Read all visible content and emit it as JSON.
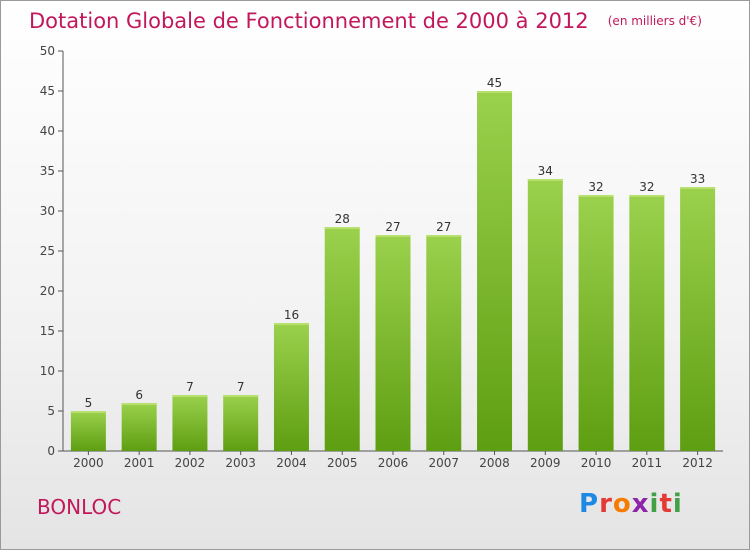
{
  "header": {
    "title": "Dotation Globale de Fonctionnement de 2000 à 2012",
    "subtitle": "(en milliers d'€)"
  },
  "footer": {
    "commune": "BONLOC",
    "logo_text": "Proxiti"
  },
  "colors": {
    "title": "#c2185b",
    "bar_top": "#9bd14d",
    "bar_bottom": "#5e9e12",
    "axis": "#555555",
    "grid": "#dddddd"
  },
  "chart_data": {
    "type": "bar",
    "title": "Dotation Globale de Fonctionnement de 2000 à 2012",
    "subtitle": "(en milliers d'€)",
    "categories": [
      "2000",
      "2001",
      "2002",
      "2003",
      "2004",
      "2005",
      "2006",
      "2007",
      "2008",
      "2009",
      "2010",
      "2011",
      "2012"
    ],
    "values": [
      5,
      6,
      7,
      7,
      16,
      28,
      27,
      27,
      45,
      34,
      32,
      32,
      33
    ],
    "ylim": [
      0,
      50
    ],
    "yticks": [
      0,
      5,
      10,
      15,
      20,
      25,
      30,
      35,
      40,
      45,
      50
    ],
    "xlabel": "",
    "ylabel": "",
    "grid": false,
    "data_labels": true
  }
}
